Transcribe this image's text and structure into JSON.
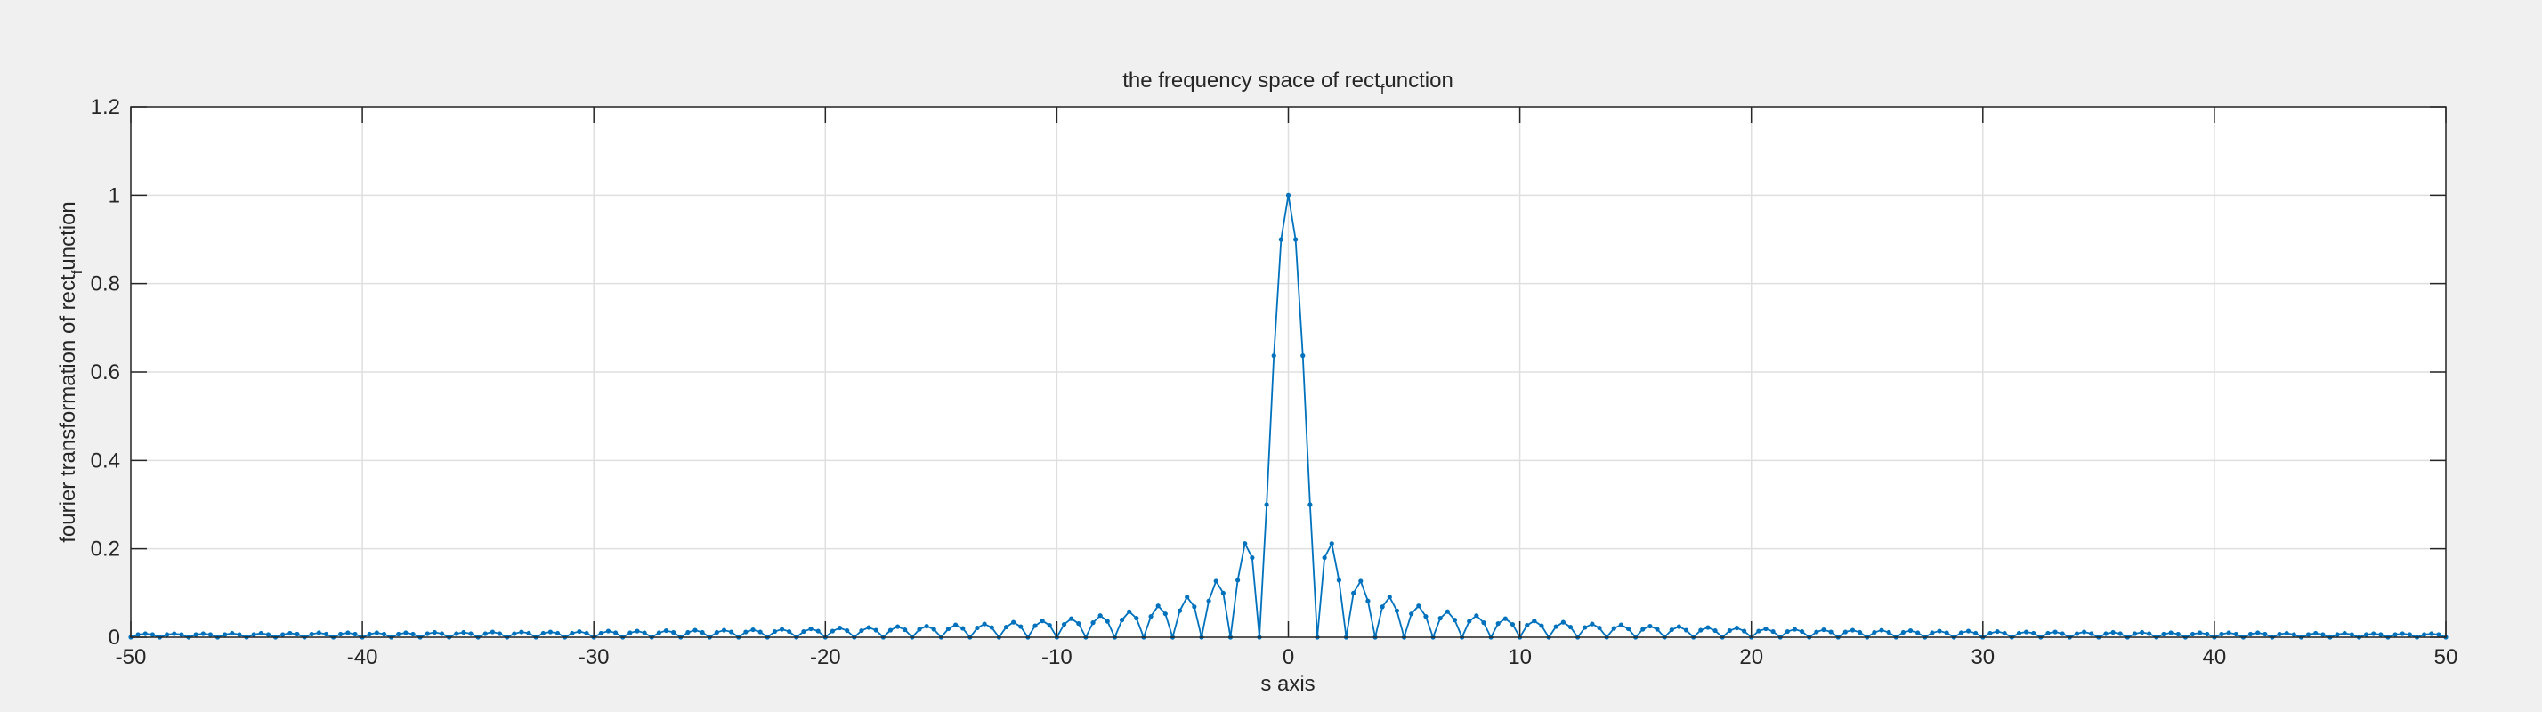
{
  "chart_data": {
    "type": "line",
    "title_parts": [
      "the frequency space of rect",
      "f",
      "unction"
    ],
    "x_label": "s axis",
    "y_label_parts": [
      "fourier transformation of rect",
      "f",
      "unction"
    ],
    "color": "#0072bd",
    "grid": true,
    "xlim": [
      -50,
      50
    ],
    "ylim": [
      0,
      1.2
    ],
    "xticks": [
      -50,
      -40,
      -30,
      -20,
      -10,
      0,
      10,
      20,
      30,
      40,
      50
    ],
    "yticks": [
      0,
      0.2,
      0.4,
      0.6,
      0.8,
      1,
      1.2
    ],
    "x": [
      -50,
      -49.6875,
      -49.375,
      -49.0625,
      -48.75,
      -48.4375,
      -48.125,
      -47.8125,
      -47.5,
      -47.1875,
      -46.875,
      -46.5625,
      -46.25,
      -45.9375,
      -45.625,
      -45.3125,
      -45,
      -44.6875,
      -44.375,
      -44.0625,
      -43.75,
      -43.4375,
      -43.125,
      -42.8125,
      -42.5,
      -42.1875,
      -41.875,
      -41.5625,
      -41.25,
      -40.9375,
      -40.625,
      -40.3125,
      -40,
      -39.6875,
      -39.375,
      -39.0625,
      -38.75,
      -38.4375,
      -38.125,
      -37.8125,
      -37.5,
      -37.1875,
      -36.875,
      -36.5625,
      -36.25,
      -35.9375,
      -35.625,
      -35.3125,
      -35,
      -34.6875,
      -34.375,
      -34.0625,
      -33.75,
      -33.4375,
      -33.125,
      -32.8125,
      -32.5,
      -32.1875,
      -31.875,
      -31.5625,
      -31.25,
      -30.9375,
      -30.625,
      -30.3125,
      -30,
      -29.6875,
      -29.375,
      -29.0625,
      -28.75,
      -28.4375,
      -28.125,
      -27.8125,
      -27.5,
      -27.1875,
      -26.875,
      -26.5625,
      -26.25,
      -25.9375,
      -25.625,
      -25.3125,
      -25,
      -24.6875,
      -24.375,
      -24.0625,
      -23.75,
      -23.4375,
      -23.125,
      -22.8125,
      -22.5,
      -22.1875,
      -21.875,
      -21.5625,
      -21.25,
      -20.9375,
      -20.625,
      -20.3125,
      -20,
      -19.6875,
      -19.375,
      -19.0625,
      -18.75,
      -18.4375,
      -18.125,
      -17.8125,
      -17.5,
      -17.1875,
      -16.875,
      -16.5625,
      -16.25,
      -15.9375,
      -15.625,
      -15.3125,
      -15,
      -14.6875,
      -14.375,
      -14.0625,
      -13.75,
      -13.4375,
      -13.125,
      -12.8125,
      -12.5,
      -12.1875,
      -11.875,
      -11.5625,
      -11.25,
      -10.9375,
      -10.625,
      -10.3125,
      -10,
      -9.6875,
      -9.375,
      -9.0625,
      -8.75,
      -8.4375,
      -8.125,
      -7.8125,
      -7.5,
      -7.1875,
      -6.875,
      -6.5625,
      -6.25,
      -5.9375,
      -5.625,
      -5.3125,
      -5,
      -4.6875,
      -4.375,
      -4.0625,
      -3.75,
      -3.4375,
      -3.125,
      -2.8125,
      -2.5,
      -2.1875,
      -1.875,
      -1.5625,
      -1.25,
      -0.9375,
      -0.625,
      -0.3125,
      0,
      0.3125,
      0.625,
      0.9375,
      1.25,
      1.5625,
      1.875,
      2.1875,
      2.5,
      2.8125,
      3.125,
      3.4375,
      3.75,
      4.0625,
      4.375,
      4.6875,
      5,
      5.3125,
      5.625,
      5.9375,
      6.25,
      6.5625,
      6.875,
      7.1875,
      7.5,
      7.8125,
      8.125,
      8.4375,
      8.75,
      9.0625,
      9.375,
      9.6875,
      10,
      10.3125,
      10.625,
      10.9375,
      11.25,
      11.5625,
      11.875,
      12.1875,
      12.5,
      12.8125,
      13.125,
      13.4375,
      13.75,
      14.0625,
      14.375,
      14.6875,
      15,
      15.3125,
      15.625,
      15.9375,
      16.25,
      16.5625,
      16.875,
      17.1875,
      17.5,
      17.8125,
      18.125,
      18.4375,
      18.75,
      19.0625,
      19.375,
      19.6875,
      20,
      20.3125,
      20.625,
      20.9375,
      21.25,
      21.5625,
      21.875,
      22.1875,
      22.5,
      22.8125,
      23.125,
      23.4375,
      23.75,
      24.0625,
      24.375,
      24.6875,
      25,
      25.3125,
      25.625,
      25.9375,
      26.25,
      26.5625,
      26.875,
      27.1875,
      27.5,
      27.8125,
      28.125,
      28.4375,
      28.75,
      29.0625,
      29.375,
      29.6875,
      30,
      30.3125,
      30.625,
      30.9375,
      31.25,
      31.5625,
      31.875,
      32.1875,
      32.5,
      32.8125,
      33.125,
      33.4375,
      33.75,
      34.0625,
      34.375,
      34.6875,
      35,
      35.3125,
      35.625,
      35.9375,
      36.25,
      36.5625,
      36.875,
      37.1875,
      37.5,
      37.8125,
      38.125,
      38.4375,
      38.75,
      39.0625,
      39.375,
      39.6875,
      40,
      40.3125,
      40.625,
      40.9375,
      41.25,
      41.5625,
      41.875,
      42.1875,
      42.5,
      42.8125,
      43.125,
      43.4375,
      43.75,
      44.0625,
      44.375,
      44.6875,
      45,
      45.3125,
      45.625,
      45.9375,
      46.25,
      46.5625,
      46.875,
      47.1875,
      47.5,
      47.8125,
      48.125,
      48.4375,
      48.75,
      49.0625,
      49.375,
      49.6875,
      50
    ],
    "values": [
      0,
      0.006,
      0.008,
      0.006,
      0,
      0.006,
      0.008,
      0.006,
      0,
      0.006,
      0.008,
      0.006,
      0,
      0.006,
      0.009,
      0.006,
      0,
      0.006,
      0.009,
      0.006,
      0,
      0.006,
      0.009,
      0.007,
      0,
      0.007,
      0.01,
      0.007,
      0,
      0.007,
      0.01,
      0.007,
      0,
      0.007,
      0.01,
      0.007,
      0,
      0.007,
      0.01,
      0.007,
      0,
      0.008,
      0.011,
      0.008,
      0,
      0.008,
      0.011,
      0.008,
      0,
      0.008,
      0.012,
      0.008,
      0,
      0.008,
      0.012,
      0.009,
      0,
      0.009,
      0.012,
      0.009,
      0,
      0.009,
      0.013,
      0.009,
      0,
      0.009,
      0.014,
      0.01,
      0,
      0.01,
      0.014,
      0.01,
      0,
      0.01,
      0.015,
      0.011,
      0,
      0.011,
      0.016,
      0.011,
      0,
      0.011,
      0.016,
      0.012,
      0,
      0.012,
      0.017,
      0.012,
      0,
      0.013,
      0.018,
      0.013,
      0,
      0.013,
      0.019,
      0.014,
      0,
      0.014,
      0.021,
      0.015,
      0,
      0.015,
      0.022,
      0.016,
      0,
      0.016,
      0.024,
      0.017,
      0,
      0.018,
      0.025,
      0.018,
      0,
      0.019,
      0.028,
      0.02,
      0,
      0.021,
      0.03,
      0.022,
      0,
      0.023,
      0.034,
      0.024,
      0,
      0.026,
      0.037,
      0.027,
      0,
      0.029,
      0.042,
      0.031,
      0,
      0.033,
      0.049,
      0.036,
      0,
      0.039,
      0.058,
      0.043,
      0,
      0.047,
      0.071,
      0.053,
      0,
      0.06,
      0.091,
      0.069,
      0,
      0.082,
      0.127,
      0.1,
      0,
      0.129,
      0.212,
      0.18,
      0,
      0.3,
      0.637,
      0.9,
      1,
      0.9,
      0.637,
      0.3,
      0,
      0.18,
      0.212,
      0.129,
      0,
      0.1,
      0.127,
      0.082,
      0,
      0.069,
      0.091,
      0.06,
      0,
      0.053,
      0.071,
      0.047,
      0,
      0.043,
      0.058,
      0.039,
      0,
      0.036,
      0.049,
      0.033,
      0,
      0.031,
      0.042,
      0.029,
      0,
      0.027,
      0.037,
      0.026,
      0,
      0.024,
      0.034,
      0.023,
      0,
      0.022,
      0.03,
      0.021,
      0,
      0.02,
      0.028,
      0.019,
      0,
      0.018,
      0.025,
      0.018,
      0,
      0.017,
      0.024,
      0.016,
      0,
      0.016,
      0.022,
      0.015,
      0,
      0.015,
      0.021,
      0.014,
      0,
      0.014,
      0.019,
      0.013,
      0,
      0.013,
      0.018,
      0.013,
      0,
      0.012,
      0.017,
      0.012,
      0,
      0.012,
      0.016,
      0.011,
      0,
      0.011,
      0.016,
      0.011,
      0,
      0.011,
      0.015,
      0.01,
      0,
      0.01,
      0.014,
      0.01,
      0,
      0.01,
      0.014,
      0.009,
      0,
      0.009,
      0.013,
      0.009,
      0,
      0.009,
      0.012,
      0.009,
      0,
      0.009,
      0.012,
      0.008,
      0,
      0.008,
      0.012,
      0.008,
      0,
      0.008,
      0.011,
      0.008,
      0,
      0.008,
      0.011,
      0.008,
      0,
      0.007,
      0.01,
      0.007,
      0,
      0.007,
      0.01,
      0.007,
      0,
      0.007,
      0.01,
      0.007,
      0,
      0.007,
      0.01,
      0.007,
      0,
      0.007,
      0.009,
      0.006,
      0,
      0.006,
      0.009,
      0.006,
      0,
      0.006,
      0.009,
      0.006,
      0,
      0.006,
      0.008,
      0.006,
      0,
      0.006,
      0.008,
      0.006,
      0,
      0.006,
      0.008,
      0.006,
      0
    ]
  }
}
